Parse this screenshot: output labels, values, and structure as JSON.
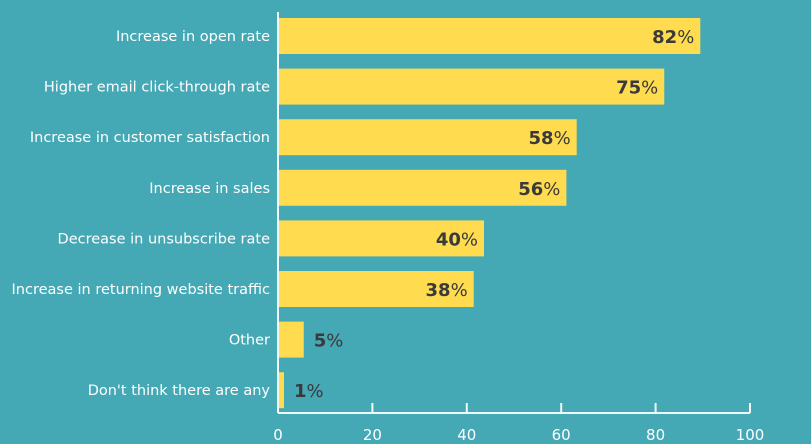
{
  "chart_data": {
    "type": "bar",
    "orientation": "horizontal",
    "title": "",
    "xlabel": "",
    "ylabel": "",
    "categories": [
      "Increase in open rate",
      "Higher email click-through rate",
      "Increase in customer satisfaction",
      "Increase in sales",
      "Decrease in unsubscribe rate",
      "Increase in returning website traffic",
      "Other",
      "Don't think there are any"
    ],
    "values": [
      82,
      75,
      58,
      56,
      40,
      38,
      5,
      1
    ],
    "value_labels": [
      "82",
      "75",
      "58",
      "56",
      "40",
      "38",
      "5",
      "1"
    ],
    "value_suffix": "%",
    "xlim": [
      0,
      100
    ],
    "x_ticks": [
      0,
      20,
      40,
      60,
      80,
      100
    ],
    "x_tick_labels": [
      "0",
      "20",
      "40",
      "60",
      "80",
      "100"
    ],
    "grid": false,
    "legend": "none",
    "colors": {
      "background": "#45a8b5",
      "bar": "#fedb4f",
      "value_text": "#3a3a3a",
      "label_text": "#ffffff",
      "axis": "#f2f7f8"
    }
  }
}
